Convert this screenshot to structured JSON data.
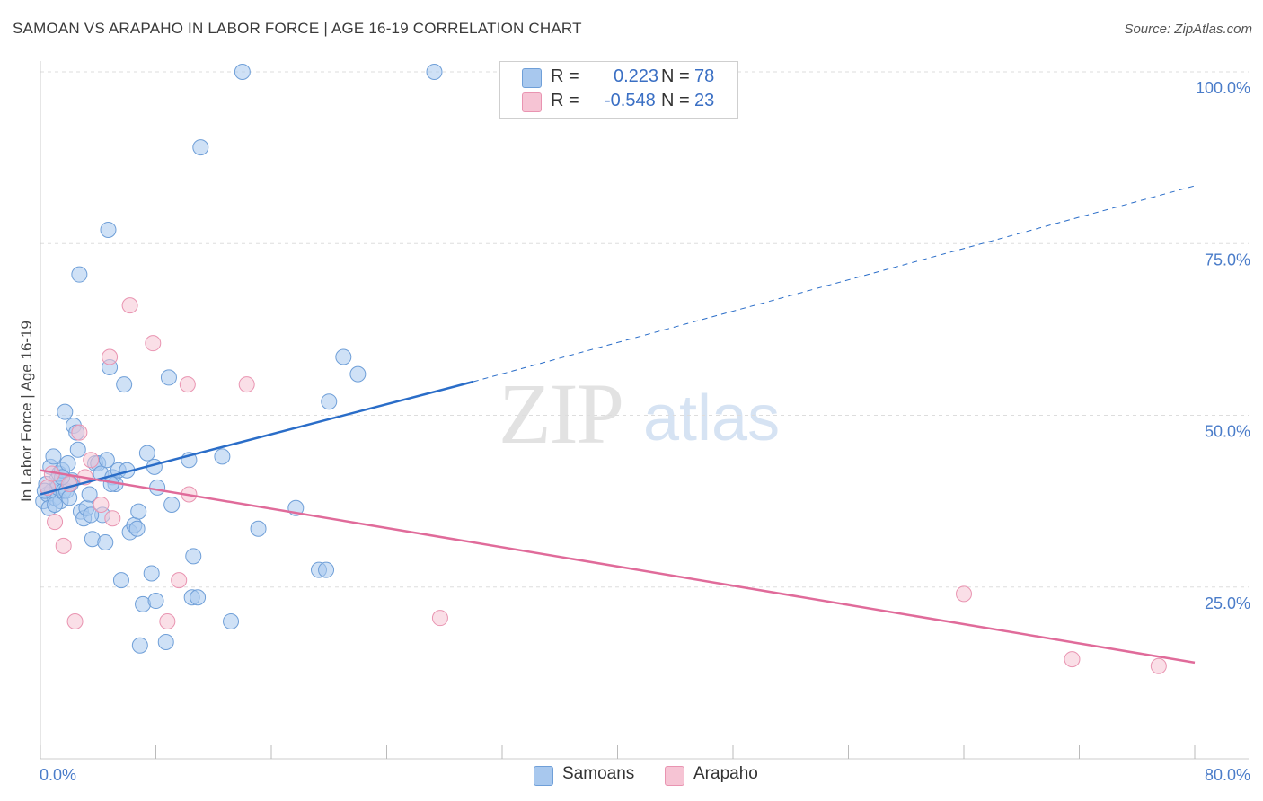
{
  "title": "SAMOAN VS ARAPAHO IN LABOR FORCE | AGE 16-19 CORRELATION CHART",
  "source": "Source: ZipAtlas.com",
  "watermark": {
    "zip": "ZIP",
    "atlas": "atlas"
  },
  "legend": {
    "samoans": {
      "r_label": "R =",
      "r_value": "0.223",
      "n_label": "N =",
      "n_value": "78"
    },
    "arapaho": {
      "r_label": "R =",
      "r_value": "-0.548",
      "n_label": "N =",
      "n_value": "23"
    }
  },
  "bottom_legend": {
    "samoans": "Samoans",
    "arapaho": "Arapaho"
  },
  "colors": {
    "samoans_fill": "#a8c8ee",
    "samoans_stroke": "#6f9fd8",
    "samoans_line": "#2a6dc8",
    "arapaho_fill": "#f6c4d4",
    "arapaho_stroke": "#e994b1",
    "arapaho_line": "#e06b9a",
    "grid": "#dddddd",
    "axis_text": "#4a7cc9"
  },
  "chart_data": {
    "type": "scatter",
    "title": "SAMOAN VS ARAPAHO IN LABOR FORCE | AGE 16-19 CORRELATION CHART",
    "xlabel": "",
    "ylabel": "In Labor Force | Age 16-19",
    "xlim": [
      0,
      80
    ],
    "ylim": [
      0,
      100
    ],
    "x_tick_labels": [
      "0.0%",
      "80.0%"
    ],
    "y_ticks": [
      25,
      50,
      75,
      100
    ],
    "y_tick_labels": [
      "25.0%",
      "50.0%",
      "75.0%",
      "100.0%"
    ],
    "grid": true,
    "series": [
      {
        "name": "Samoans",
        "r": 0.223,
        "n": 78,
        "trend": {
          "x": [
            0,
            30
          ],
          "y": [
            38.5,
            54.9
          ],
          "dashed_to": [
            80,
            83.4
          ]
        },
        "points": [
          [
            0.2,
            37.5
          ],
          [
            0.4,
            40.0
          ],
          [
            0.5,
            38.5
          ],
          [
            0.6,
            36.5
          ],
          [
            0.7,
            42.5
          ],
          [
            0.8,
            39.0
          ],
          [
            0.9,
            44.0
          ],
          [
            1.0,
            38.0
          ],
          [
            1.1,
            40.5
          ],
          [
            1.2,
            39.5
          ],
          [
            1.3,
            41.5
          ],
          [
            1.4,
            37.5
          ],
          [
            1.5,
            42.0
          ],
          [
            1.6,
            39.0
          ],
          [
            1.7,
            50.5
          ],
          [
            1.8,
            39.0
          ],
          [
            1.9,
            43.0
          ],
          [
            2.0,
            38.0
          ],
          [
            2.2,
            40.5
          ],
          [
            2.3,
            48.5
          ],
          [
            2.5,
            47.5
          ],
          [
            2.6,
            45.0
          ],
          [
            2.7,
            70.5
          ],
          [
            2.8,
            36.0
          ],
          [
            3.0,
            35.0
          ],
          [
            3.2,
            36.5
          ],
          [
            3.4,
            38.5
          ],
          [
            3.6,
            32.0
          ],
          [
            3.8,
            43.0
          ],
          [
            4.0,
            43.0
          ],
          [
            4.2,
            41.5
          ],
          [
            4.3,
            35.5
          ],
          [
            4.5,
            31.5
          ],
          [
            4.6,
            43.5
          ],
          [
            4.7,
            77.0
          ],
          [
            4.8,
            57.0
          ],
          [
            5.0,
            41.0
          ],
          [
            5.2,
            40.0
          ],
          [
            5.4,
            42.0
          ],
          [
            5.6,
            26.0
          ],
          [
            5.8,
            54.5
          ],
          [
            6.2,
            33.0
          ],
          [
            6.5,
            34.0
          ],
          [
            6.7,
            33.5
          ],
          [
            6.8,
            36.0
          ],
          [
            6.9,
            16.5
          ],
          [
            7.1,
            22.5
          ],
          [
            7.4,
            44.5
          ],
          [
            7.7,
            27.0
          ],
          [
            7.9,
            42.5
          ],
          [
            8.0,
            23.0
          ],
          [
            8.1,
            39.5
          ],
          [
            8.7,
            17.0
          ],
          [
            8.9,
            55.5
          ],
          [
            9.1,
            37.0
          ],
          [
            10.3,
            43.5
          ],
          [
            10.5,
            23.5
          ],
          [
            10.6,
            29.5
          ],
          [
            10.9,
            23.5
          ],
          [
            11.1,
            89.0
          ],
          [
            12.6,
            44.0
          ],
          [
            13.2,
            20.0
          ],
          [
            14.0,
            100.0
          ],
          [
            15.1,
            33.5
          ],
          [
            17.7,
            36.5
          ],
          [
            19.3,
            27.5
          ],
          [
            19.8,
            27.5
          ],
          [
            20.0,
            52.0
          ],
          [
            21.0,
            58.5
          ],
          [
            22.0,
            56.0
          ],
          [
            27.3,
            100.0
          ],
          [
            1.0,
            37.0
          ],
          [
            2.1,
            40.0
          ],
          [
            3.5,
            35.5
          ],
          [
            6.0,
            42.0
          ],
          [
            0.3,
            39.0
          ],
          [
            1.5,
            41.0
          ],
          [
            4.9,
            40.0
          ]
        ]
      },
      {
        "name": "Arapaho",
        "r": -0.548,
        "n": 23,
        "trend": {
          "x": [
            0,
            80
          ],
          "y": [
            42.0,
            14.0
          ]
        },
        "points": [
          [
            0.5,
            39.5
          ],
          [
            0.8,
            41.5
          ],
          [
            1.0,
            34.5
          ],
          [
            1.6,
            31.0
          ],
          [
            2.0,
            40.0
          ],
          [
            2.4,
            20.0
          ],
          [
            2.7,
            47.5
          ],
          [
            3.1,
            41.0
          ],
          [
            3.5,
            43.5
          ],
          [
            4.2,
            37.0
          ],
          [
            4.8,
            58.5
          ],
          [
            5.0,
            35.0
          ],
          [
            6.2,
            66.0
          ],
          [
            7.8,
            60.5
          ],
          [
            8.8,
            20.0
          ],
          [
            9.6,
            26.0
          ],
          [
            10.2,
            54.5
          ],
          [
            10.3,
            38.5
          ],
          [
            14.3,
            54.5
          ],
          [
            27.7,
            20.5
          ],
          [
            64.0,
            24.0
          ],
          [
            71.5,
            14.5
          ],
          [
            77.5,
            13.5
          ]
        ]
      }
    ]
  }
}
